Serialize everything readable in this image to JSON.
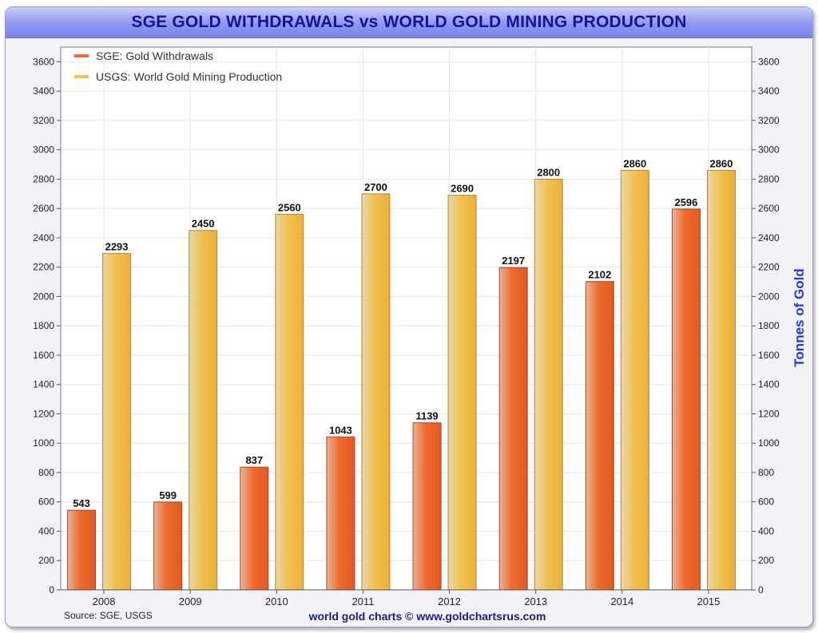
{
  "chart_data": {
    "type": "bar",
    "title": "SGE GOLD WITHDRAWALS vs WORLD GOLD MINING PRODUCTION",
    "xlabel": "",
    "ylabel": "Tonnes of Gold",
    "ylim": [
      0,
      3700
    ],
    "yticks": [
      "0",
      "200",
      "400",
      "600",
      "800",
      "1000",
      "1200",
      "1400",
      "1600",
      "1800",
      "2000",
      "2200",
      "2400",
      "2600",
      "2800",
      "3000",
      "3200",
      "3400",
      "3600"
    ],
    "categories": [
      "2008",
      "2009",
      "2010",
      "2011",
      "2012",
      "2013",
      "2014",
      "2015"
    ],
    "series": [
      {
        "name": "SGE: Gold Withdrawals",
        "color": "#ee6a2e",
        "values": [
          543,
          599,
          837,
          1043,
          1139,
          2197,
          2102,
          2596
        ],
        "labels": [
          "543",
          "599",
          "837",
          "1043",
          "1139",
          "2197",
          "2102",
          "2596"
        ]
      },
      {
        "name": "USGS: World Gold Mining Production",
        "color": "#f1bf4d",
        "values": [
          2293,
          2450,
          2560,
          2700,
          2690,
          2800,
          2860,
          2860
        ],
        "labels": [
          "2293",
          "2450",
          "2560",
          "2700",
          "2690",
          "2800",
          "2860",
          "2860"
        ]
      }
    ],
    "grid": true,
    "legend": "top-left",
    "source": "Source: SGE, USGS",
    "credit": "world gold charts © www.goldchartsrus.com"
  }
}
